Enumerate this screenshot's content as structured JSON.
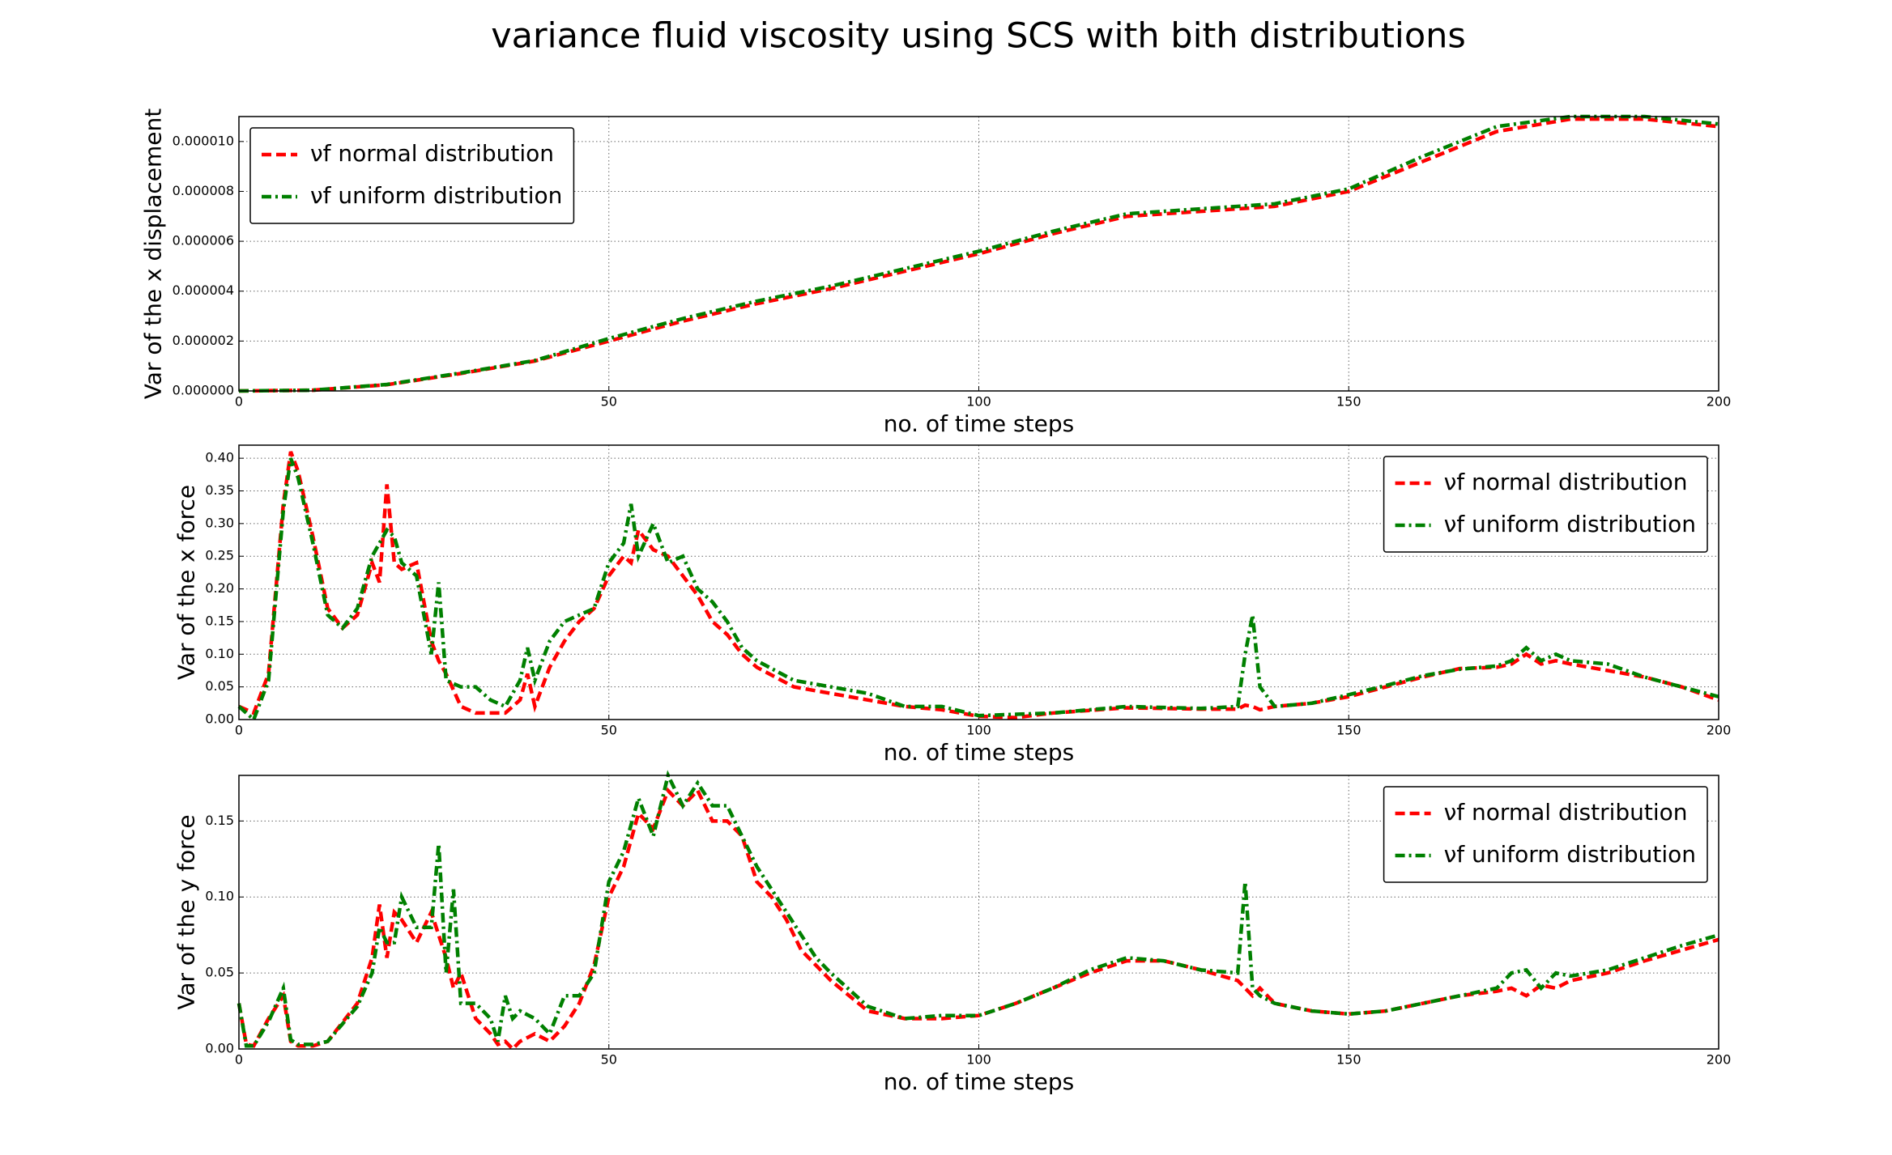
{
  "title": "variance fluid viscosity using SCS with bith distributions",
  "chart_data": [
    {
      "type": "line",
      "xlabel": "no. of time steps",
      "ylabel": "Var of the x displacement",
      "xlim": [
        0,
        200
      ],
      "xticks": [
        0,
        50,
        100,
        150,
        200
      ],
      "ylim": [
        0,
        1.1e-05
      ],
      "yticks": [
        {
          "value": 0,
          "label": "0.000000"
        },
        {
          "value": 2e-06,
          "label": "0.000002"
        },
        {
          "value": 4e-06,
          "label": "0.000004"
        },
        {
          "value": 6e-06,
          "label": "0.000006"
        },
        {
          "value": 8e-06,
          "label": "0.000008"
        },
        {
          "value": 1e-05,
          "label": "0.000010"
        }
      ],
      "grid": true,
      "legend": "upper left",
      "x": [
        0,
        10,
        20,
        30,
        40,
        50,
        60,
        70,
        80,
        90,
        100,
        110,
        120,
        130,
        140,
        150,
        160,
        170,
        180,
        190,
        200
      ],
      "series": [
        {
          "name": "νf normal distribution",
          "color": "#ff0000",
          "dash": "dashed",
          "values": [
            0,
            3e-08,
            2.5e-07,
            7e-07,
            1.2e-06,
            2e-06,
            2.8e-06,
            3.5e-06,
            4.1e-06,
            4.8e-06,
            5.5e-06,
            6.3e-06,
            7e-06,
            7.2e-06,
            7.4e-06,
            8e-06,
            9.2e-06,
            1.04e-05,
            1.09e-05,
            1.09e-05,
            1.06e-05
          ]
        },
        {
          "name": "νf uniform distribution",
          "color": "#008000",
          "dash": "dashdot",
          "values": [
            0,
            3e-08,
            2.6e-07,
            7.2e-07,
            1.22e-06,
            2.1e-06,
            2.9e-06,
            3.6e-06,
            4.2e-06,
            4.9e-06,
            5.6e-06,
            6.4e-06,
            7.1e-06,
            7.3e-06,
            7.5e-06,
            8.1e-06,
            9.4e-06,
            1.06e-05,
            1.1e-05,
            1.1e-05,
            1.07e-05
          ]
        }
      ]
    },
    {
      "type": "line",
      "xlabel": "no. of time steps",
      "ylabel": "Var of the x force",
      "xlim": [
        0,
        200
      ],
      "xticks": [
        0,
        50,
        100,
        150,
        200
      ],
      "ylim": [
        0,
        0.42
      ],
      "yticks": [
        {
          "value": 0,
          "label": "0.00"
        },
        {
          "value": 0.05,
          "label": "0.05"
        },
        {
          "value": 0.1,
          "label": "0.10"
        },
        {
          "value": 0.15,
          "label": "0.15"
        },
        {
          "value": 0.2,
          "label": "0.20"
        },
        {
          "value": 0.25,
          "label": "0.25"
        },
        {
          "value": 0.3,
          "label": "0.30"
        },
        {
          "value": 0.35,
          "label": "0.35"
        },
        {
          "value": 0.4,
          "label": "0.40"
        }
      ],
      "grid": true,
      "legend": "upper right",
      "x": [
        0,
        2,
        4,
        6,
        7,
        8,
        10,
        12,
        14,
        16,
        18,
        19,
        20,
        21,
        22,
        24,
        26,
        27,
        28,
        30,
        32,
        34,
        36,
        38,
        39,
        40,
        42,
        44,
        46,
        48,
        50,
        52,
        53,
        54,
        56,
        58,
        60,
        62,
        64,
        66,
        68,
        70,
        75,
        80,
        85,
        90,
        95,
        100,
        105,
        110,
        120,
        130,
        135,
        136,
        137,
        138,
        140,
        145,
        150,
        155,
        160,
        165,
        170,
        172,
        174,
        176,
        178,
        180,
        185,
        190,
        195,
        200
      ],
      "series": [
        {
          "name": "νf normal distribution",
          "color": "#ff0000",
          "dash": "dashed",
          "values": [
            0.02,
            0.01,
            0.07,
            0.33,
            0.41,
            0.38,
            0.28,
            0.17,
            0.14,
            0.16,
            0.24,
            0.21,
            0.36,
            0.24,
            0.23,
            0.24,
            0.12,
            0.09,
            0.07,
            0.02,
            0.01,
            0.01,
            0.01,
            0.03,
            0.07,
            0.02,
            0.08,
            0.12,
            0.15,
            0.17,
            0.22,
            0.25,
            0.24,
            0.29,
            0.26,
            0.25,
            0.22,
            0.19,
            0.15,
            0.13,
            0.1,
            0.08,
            0.05,
            0.04,
            0.03,
            0.02,
            0.015,
            0.005,
            0.003,
            0.01,
            0.018,
            0.016,
            0.016,
            0.022,
            0.02,
            0.015,
            0.02,
            0.025,
            0.035,
            0.05,
            0.065,
            0.078,
            0.08,
            0.085,
            0.1,
            0.085,
            0.09,
            0.085,
            0.075,
            0.065,
            0.05,
            0.03
          ]
        },
        {
          "name": "νf uniform distribution",
          "color": "#008000",
          "dash": "dashdot",
          "values": [
            0.02,
            0.0,
            0.06,
            0.32,
            0.4,
            0.37,
            0.27,
            0.16,
            0.14,
            0.17,
            0.25,
            0.27,
            0.29,
            0.28,
            0.24,
            0.22,
            0.1,
            0.21,
            0.06,
            0.05,
            0.05,
            0.03,
            0.02,
            0.06,
            0.11,
            0.06,
            0.12,
            0.15,
            0.16,
            0.17,
            0.24,
            0.27,
            0.33,
            0.25,
            0.3,
            0.24,
            0.25,
            0.2,
            0.18,
            0.15,
            0.11,
            0.09,
            0.06,
            0.05,
            0.04,
            0.02,
            0.02,
            0.006,
            0.008,
            0.01,
            0.02,
            0.017,
            0.02,
            0.1,
            0.16,
            0.05,
            0.02,
            0.025,
            0.038,
            0.052,
            0.067,
            0.077,
            0.082,
            0.09,
            0.11,
            0.09,
            0.1,
            0.09,
            0.085,
            0.065,
            0.05,
            0.035
          ]
        }
      ]
    },
    {
      "type": "line",
      "xlabel": "no. of time steps",
      "ylabel": "Var of the y force",
      "xlim": [
        0,
        200
      ],
      "xticks": [
        0,
        50,
        100,
        150,
        200
      ],
      "ylim": [
        0,
        0.18
      ],
      "yticks": [
        {
          "value": 0,
          "label": "0.00"
        },
        {
          "value": 0.05,
          "label": "0.05"
        },
        {
          "value": 0.1,
          "label": "0.10"
        },
        {
          "value": 0.15,
          "label": "0.15"
        }
      ],
      "grid": true,
      "legend": "upper right",
      "x": [
        0,
        1,
        2,
        4,
        6,
        7,
        8,
        10,
        12,
        16,
        18,
        19,
        20,
        21,
        22,
        24,
        26,
        27,
        28,
        29,
        30,
        32,
        34,
        35,
        36,
        37,
        38,
        40,
        42,
        44,
        46,
        48,
        50,
        52,
        54,
        56,
        58,
        60,
        62,
        64,
        66,
        68,
        70,
        72,
        74,
        76,
        78,
        80,
        85,
        90,
        95,
        100,
        105,
        110,
        115,
        120,
        125,
        130,
        135,
        136,
        137,
        138,
        140,
        145,
        150,
        155,
        160,
        165,
        170,
        172,
        174,
        176,
        178,
        180,
        185,
        190,
        195,
        200
      ],
      "series": [
        {
          "name": "νf normal distribution",
          "color": "#ff0000",
          "dash": "dashed",
          "values": [
            0.03,
            0.003,
            0.002,
            0.02,
            0.035,
            0.005,
            0.002,
            0.002,
            0.005,
            0.03,
            0.06,
            0.095,
            0.06,
            0.09,
            0.085,
            0.07,
            0.09,
            0.075,
            0.06,
            0.04,
            0.05,
            0.02,
            0.01,
            0.003,
            0.005,
            0.0,
            0.005,
            0.01,
            0.005,
            0.015,
            0.03,
            0.055,
            0.1,
            0.12,
            0.155,
            0.145,
            0.17,
            0.16,
            0.17,
            0.15,
            0.15,
            0.14,
            0.11,
            0.1,
            0.085,
            0.065,
            0.055,
            0.045,
            0.025,
            0.02,
            0.02,
            0.022,
            0.03,
            0.04,
            0.05,
            0.058,
            0.058,
            0.052,
            0.045,
            0.04,
            0.035,
            0.04,
            0.03,
            0.025,
            0.023,
            0.025,
            0.03,
            0.035,
            0.038,
            0.04,
            0.035,
            0.042,
            0.04,
            0.045,
            0.05,
            0.058,
            0.065,
            0.072
          ]
        },
        {
          "name": "νf uniform distribution",
          "color": "#008000",
          "dash": "dashdot",
          "values": [
            0.03,
            0.002,
            0.002,
            0.018,
            0.04,
            0.006,
            0.003,
            0.003,
            0.005,
            0.028,
            0.05,
            0.08,
            0.07,
            0.07,
            0.1,
            0.08,
            0.08,
            0.135,
            0.05,
            0.105,
            0.03,
            0.03,
            0.02,
            0.005,
            0.035,
            0.02,
            0.025,
            0.02,
            0.01,
            0.035,
            0.035,
            0.05,
            0.11,
            0.13,
            0.165,
            0.14,
            0.18,
            0.16,
            0.175,
            0.16,
            0.16,
            0.14,
            0.12,
            0.105,
            0.09,
            0.075,
            0.06,
            0.05,
            0.028,
            0.02,
            0.022,
            0.022,
            0.03,
            0.04,
            0.052,
            0.06,
            0.058,
            0.052,
            0.05,
            0.11,
            0.04,
            0.035,
            0.03,
            0.025,
            0.023,
            0.025,
            0.03,
            0.035,
            0.04,
            0.05,
            0.052,
            0.04,
            0.05,
            0.048,
            0.052,
            0.06,
            0.068,
            0.075
          ]
        }
      ]
    }
  ]
}
